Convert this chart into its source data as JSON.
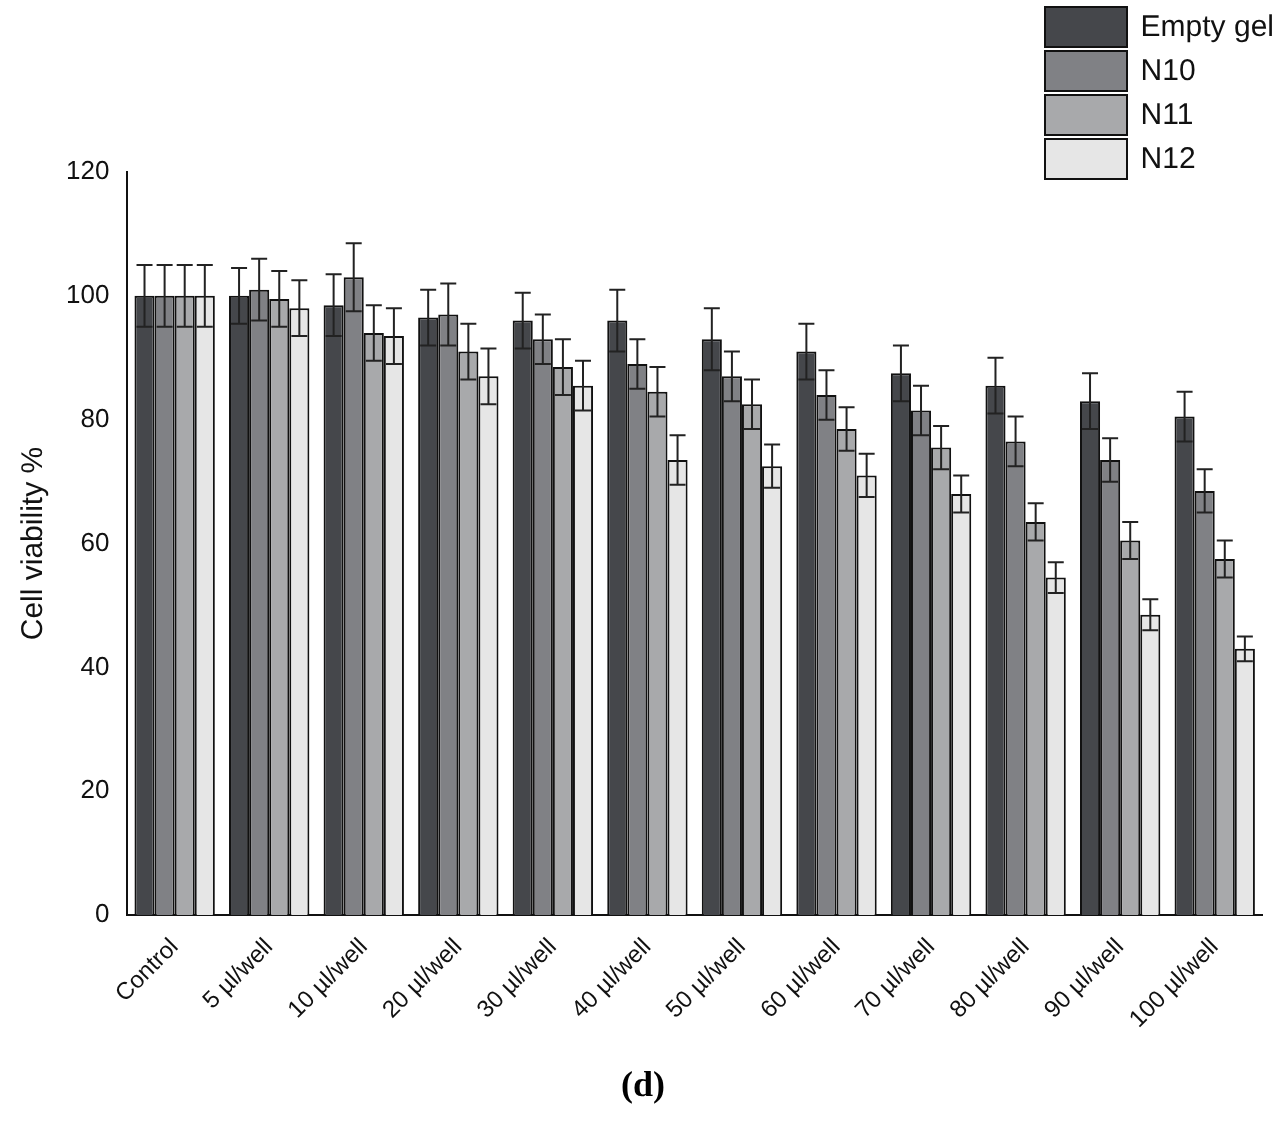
{
  "chart_data": {
    "type": "bar",
    "ylabel": "Cell viability %",
    "categories": [
      "Control",
      "5 µl/well",
      "10 µl/well",
      "20 µl/well",
      "30 µl/well",
      "40 µl/well",
      "50 µl/well",
      "60 µl/well",
      "70 µl/well",
      "80 µl/well",
      "90 µl/well",
      "100 µl/well"
    ],
    "series": [
      {
        "name": "Empty gel",
        "color": "#45474b",
        "values": [
          100,
          100,
          98.5,
          96.5,
          96,
          96,
          93,
          91,
          87.5,
          85.5,
          83,
          80.5
        ],
        "errors": [
          5,
          4.5,
          5,
          4.5,
          4.5,
          5,
          5,
          4.5,
          4.5,
          4.5,
          4.5,
          4
        ]
      },
      {
        "name": "N10",
        "color": "#808185",
        "values": [
          100,
          101,
          103,
          97,
          93,
          89,
          87,
          84,
          81.5,
          76.5,
          73.5,
          68.5
        ],
        "errors": [
          5,
          5,
          5.5,
          5,
          4,
          4,
          4,
          4,
          4,
          4,
          3.5,
          3.5
        ]
      },
      {
        "name": "N11",
        "color": "#a8a9ab",
        "values": [
          100,
          99.5,
          94,
          91,
          88.5,
          84.5,
          82.5,
          78.5,
          75.5,
          63.5,
          60.5,
          57.5
        ],
        "errors": [
          5,
          4.5,
          4.5,
          4.5,
          4.5,
          4,
          4,
          3.5,
          3.5,
          3,
          3,
          3
        ]
      },
      {
        "name": "N12",
        "color": "#e6e6e6",
        "values": [
          100,
          98,
          93.5,
          87,
          85.5,
          73.5,
          72.5,
          71,
          68,
          54.5,
          48.5,
          43
        ],
        "errors": [
          5,
          4.5,
          4.5,
          4.5,
          4,
          4,
          3.5,
          3.5,
          3,
          2.5,
          2.5,
          2
        ]
      }
    ],
    "ylim": [
      0,
      120
    ],
    "yticks": [
      0,
      20,
      40,
      60,
      80,
      100,
      120
    ],
    "grid": false,
    "legend": "top right",
    "annotations": [
      "(d)"
    ]
  }
}
